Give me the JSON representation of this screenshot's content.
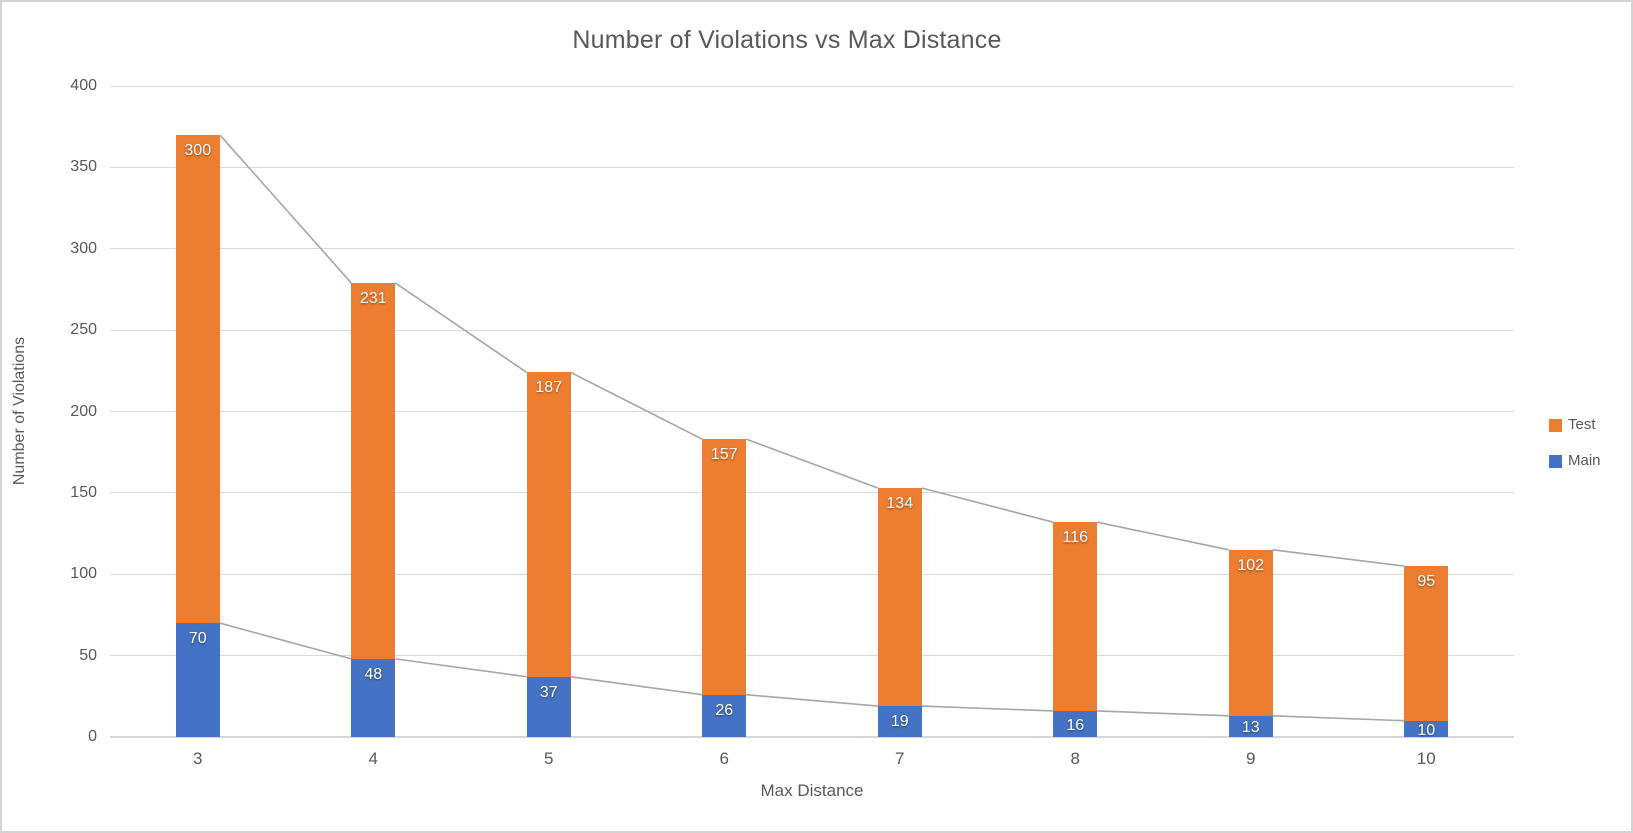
{
  "chart_data": {
    "type": "bar",
    "stacked": true,
    "title": "Number of Violations vs Max Distance",
    "xlabel": "Max Distance",
    "ylabel": "Number of Violations",
    "categories": [
      "3",
      "4",
      "5",
      "6",
      "7",
      "8",
      "9",
      "10"
    ],
    "series": [
      {
        "name": "Main",
        "color": "#4472C4",
        "values": [
          70,
          48,
          37,
          26,
          19,
          16,
          13,
          10
        ]
      },
      {
        "name": "Test",
        "color": "#ED7D31",
        "values": [
          300,
          231,
          187,
          157,
          134,
          116,
          102,
          95
        ]
      }
    ],
    "ylim": [
      0,
      400
    ],
    "ytick_step": 50,
    "grid": true,
    "data_labels": "inside-end",
    "series_lines": true,
    "legend_position": "right",
    "legend_order": [
      "Test",
      "Main"
    ]
  },
  "colors": {
    "text": "#595959",
    "gridline": "#D9D9D9",
    "axis_line": "#D6D6D6",
    "series_line": "#A6A6A6",
    "frame_border": "#D3D3D3",
    "background": "#FFFFFF",
    "data_label_text": "#FFFFFF"
  }
}
